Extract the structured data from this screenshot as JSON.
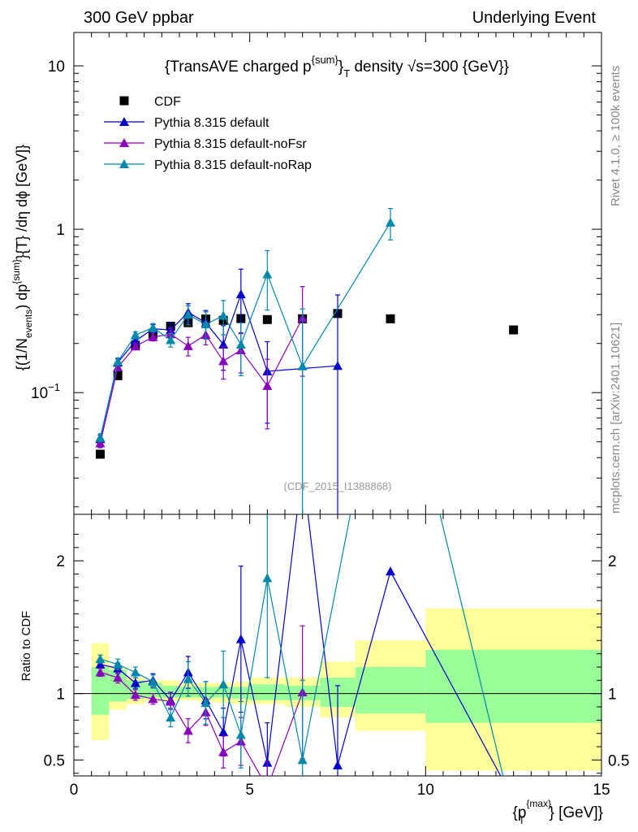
{
  "header": {
    "left": "300 GeV ppbar",
    "right": "Underlying Event"
  },
  "side": {
    "rivet": "Rivet 4.1.0, ≥ 100k events",
    "mcplots": "mcplots.cern.ch [arXiv:2401.10621]"
  },
  "chart_data": {
    "type": "scatter",
    "title": "{TransAVE charged p^{sum}_T density √s=300 {GeV}}",
    "title_parts": {
      "pre": "{TransAVE charged p",
      "sup": "{sum}",
      "close": "}",
      "sub": "T",
      "post": " density √s=300 {GeV}}"
    },
    "analysis_label": "(CDF_2015_I1388868)",
    "ylabel_parts": [
      "{(1/N",
      "events",
      ") dp",
      "{sum}",
      "}{T} /dη  dϕ [GeV]}"
    ],
    "ratio_ylabel": "Ratio to CDF",
    "xlabel_parts": [
      "{p",
      "{max}",
      "T",
      "} [GeV]}"
    ],
    "xlim": [
      0,
      15
    ],
    "ylim": [
      0.018,
      16
    ],
    "yscale": "log",
    "ratio_ylim": [
      0.38,
      2.35
    ],
    "x_ticks": [
      0,
      5,
      10,
      15
    ],
    "x_tick_labels": [
      "0",
      "5",
      "10",
      "15"
    ],
    "y_ticks": [
      0.1,
      1,
      10
    ],
    "y_tick_labels": [
      "10^{-1}",
      "1",
      "10"
    ],
    "ratio_y_ticks": [
      0.5,
      1,
      2
    ],
    "ratio_y_tick_labels": [
      "0.5",
      "1",
      "2"
    ],
    "legend_position": "top-left",
    "reference": {
      "name": "CDF",
      "color": "#000000",
      "x": [
        0.75,
        1.25,
        1.75,
        2.25,
        2.75,
        3.25,
        3.75,
        4.25,
        4.75,
        5.5,
        6.5,
        7.5,
        9.0,
        12.5
      ],
      "y": [
        0.042,
        0.127,
        0.195,
        0.228,
        0.255,
        0.268,
        0.282,
        0.277,
        0.284,
        0.28,
        0.283,
        0.305,
        0.283,
        0.242
      ],
      "band_x_edges": [
        0.5,
        1.0,
        1.5,
        2.0,
        2.5,
        3.0,
        3.5,
        4.0,
        4.5,
        5.0,
        6.0,
        7.0,
        8.0,
        10.0,
        15.0
      ],
      "stat_band": [
        [
          0.84,
          1.2
        ],
        [
          0.94,
          1.18
        ],
        [
          0.96,
          1.1
        ],
        [
          0.97,
          1.08
        ],
        [
          0.97,
          1.06
        ],
        [
          0.97,
          1.05
        ],
        [
          0.97,
          1.05
        ],
        [
          0.97,
          1.05
        ],
        [
          0.96,
          1.05
        ],
        [
          0.95,
          1.07
        ],
        [
          0.95,
          1.06
        ],
        [
          0.9,
          1.12
        ],
        [
          0.85,
          1.2
        ],
        [
          0.78,
          1.33
        ]
      ],
      "total_band": [
        [
          0.65,
          1.38
        ],
        [
          0.88,
          1.2
        ],
        [
          0.92,
          1.12
        ],
        [
          0.94,
          1.1
        ],
        [
          0.94,
          1.1
        ],
        [
          0.95,
          1.08
        ],
        [
          0.94,
          1.08
        ],
        [
          0.93,
          1.08
        ],
        [
          0.92,
          1.09
        ],
        [
          0.92,
          1.12
        ],
        [
          0.9,
          1.12
        ],
        [
          0.82,
          1.24
        ],
        [
          0.72,
          1.4
        ],
        [
          0.42,
          1.64
        ]
      ]
    },
    "series": [
      {
        "name": "Pythia 8.315 default",
        "color": "#0000cc",
        "x": [
          0.75,
          1.25,
          1.75,
          2.25,
          2.75,
          3.25,
          3.75,
          4.25,
          4.75,
          5.5,
          7.5
        ],
        "y": [
          0.052,
          0.153,
          0.207,
          0.246,
          0.242,
          0.31,
          0.268,
          0.197,
          0.4,
          0.135,
          0.146
        ],
        "err": [
          0.003,
          0.008,
          0.01,
          0.015,
          0.025,
          0.04,
          0.05,
          0.06,
          0.17,
          0.07,
          0.25
        ],
        "ratio_y": [
          1.22,
          1.19,
          1.08,
          1.1,
          0.95,
          1.16,
          0.95,
          0.71,
          1.41,
          0.48,
          2.7,
          0.46,
          1.92,
          0.2
        ],
        "ratio_x": [
          0.75,
          1.25,
          1.75,
          2.25,
          2.75,
          3.25,
          3.75,
          4.25,
          4.75,
          5.5,
          6.5,
          7.5,
          9.0,
          12.5
        ],
        "ratio_err": [
          0.03,
          0.04,
          0.04,
          0.05,
          0.06,
          0.12,
          0.14,
          0.18,
          0.55,
          0.3,
          0.0,
          0.6,
          0.0,
          0.0
        ]
      },
      {
        "name": "Pythia 8.315 default-noFsr",
        "color": "#8800bb",
        "x": [
          0.75,
          1.25,
          1.75,
          2.25,
          2.75,
          3.25,
          3.75,
          4.25,
          4.75,
          5.5,
          6.5
        ],
        "y": [
          0.049,
          0.143,
          0.192,
          0.219,
          0.228,
          0.193,
          0.226,
          0.156,
          0.182,
          0.11,
          0.286
        ],
        "err": [
          0.003,
          0.007,
          0.009,
          0.012,
          0.02,
          0.025,
          0.03,
          0.035,
          0.05,
          0.05,
          0.16
        ],
        "ratio_y": [
          1.16,
          1.12,
          0.99,
          0.96,
          0.94,
          0.72,
          0.86,
          0.56,
          0.64,
          0.29,
          1.01
        ],
        "ratio_x": [
          0.75,
          1.25,
          1.75,
          2.25,
          2.75,
          3.25,
          3.75,
          4.25,
          4.75,
          5.5,
          6.5
        ],
        "ratio_err": [
          0.03,
          0.04,
          0.04,
          0.04,
          0.06,
          0.09,
          0.1,
          0.12,
          0.18,
          0.2,
          0.5
        ]
      },
      {
        "name": "Pythia 8.315 default-noRap",
        "color": "#0088aa",
        "x": [
          0.75,
          1.25,
          1.75,
          2.25,
          2.75,
          3.25,
          3.75,
          4.25,
          4.75,
          5.5,
          6.5,
          9.0
        ],
        "y": [
          0.053,
          0.155,
          0.225,
          0.25,
          0.21,
          0.3,
          0.262,
          0.296,
          0.197,
          0.53,
          0.145,
          1.1
        ],
        "err": [
          0.003,
          0.008,
          0.011,
          0.015,
          0.02,
          0.04,
          0.05,
          0.07,
          0.07,
          0.21,
          0.18,
          0.24
        ],
        "ratio_y": [
          1.26,
          1.22,
          1.16,
          1.09,
          0.82,
          1.11,
          0.93,
          1.07,
          0.69,
          1.87,
          0.5,
          3.9,
          0.05
        ],
        "ratio_x": [
          0.75,
          1.25,
          1.75,
          2.25,
          2.75,
          3.25,
          3.75,
          4.25,
          4.75,
          5.5,
          6.5,
          9.0,
          12.5
        ],
        "ratio_err": [
          0.03,
          0.04,
          0.04,
          0.05,
          0.07,
          0.13,
          0.16,
          0.25,
          0.25,
          0.75,
          0.6,
          0.0,
          0.0
        ]
      }
    ]
  }
}
